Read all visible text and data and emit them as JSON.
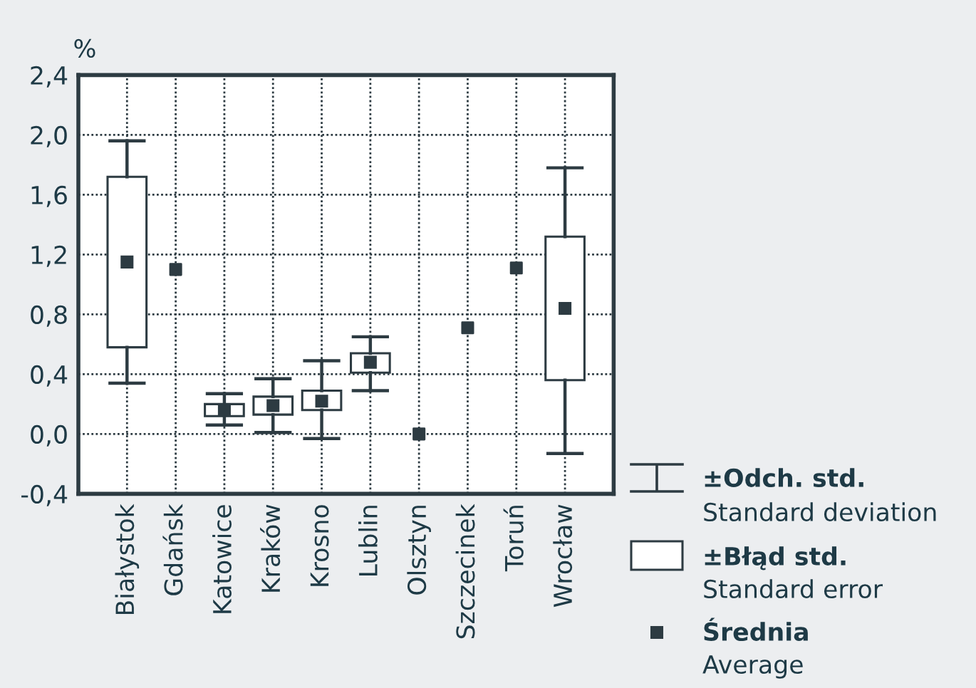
{
  "chart_data": {
    "type": "box",
    "ylabel": "%",
    "categories": [
      "Białystok",
      "Gdańsk",
      "Katowice",
      "Kraków",
      "Krosno",
      "Lublin",
      "Olsztyn",
      "Szczecinek",
      "Toruń",
      "Wrocław"
    ],
    "boxes": [
      {
        "low": 0.34,
        "q1": 0.58,
        "mean": 1.15,
        "q3": 1.72,
        "high": 1.96
      },
      null,
      {
        "low": 0.06,
        "q1": 0.12,
        "mean": 0.16,
        "q3": 0.2,
        "high": 0.27
      },
      {
        "low": 0.01,
        "q1": 0.13,
        "mean": 0.19,
        "q3": 0.25,
        "high": 0.37
      },
      {
        "low": -0.03,
        "q1": 0.16,
        "mean": 0.22,
        "q3": 0.29,
        "high": 0.49
      },
      {
        "low": 0.29,
        "q1": 0.41,
        "mean": 0.48,
        "q3": 0.54,
        "high": 0.65
      },
      null,
      null,
      null,
      {
        "low": -0.13,
        "q1": 0.36,
        "mean": 0.84,
        "q3": 1.32,
        "high": 1.78
      }
    ],
    "series": [
      {
        "type": "scatter",
        "x": [
          "Gdańsk",
          "Olsztyn",
          "Szczecinek",
          "Toruń"
        ],
        "values": [
          1.1,
          0.0,
          0.71,
          1.11
        ],
        "color": "#2d3b42"
      }
    ],
    "color": "#2d3b42",
    "marker": "square",
    "ylim": [
      -0.4,
      2.4
    ],
    "yticks": [
      {
        "value": -0.4,
        "label": "-0,4"
      },
      {
        "value": 0.0,
        "label": "0,0"
      },
      {
        "value": 0.4,
        "label": "0,4"
      },
      {
        "value": 0.8,
        "label": "0,8"
      },
      {
        "value": 1.2,
        "label": "1,2"
      },
      {
        "value": 1.6,
        "label": "1,6"
      },
      {
        "value": 2.0,
        "label": "2,0"
      },
      {
        "value": 2.4,
        "label": "2,4"
      }
    ],
    "grid": true,
    "annotations": [
      "±Odch. std.",
      "Standard deviation",
      "±Błąd std.",
      "Standard error",
      "Średnia",
      "Average"
    ]
  }
}
